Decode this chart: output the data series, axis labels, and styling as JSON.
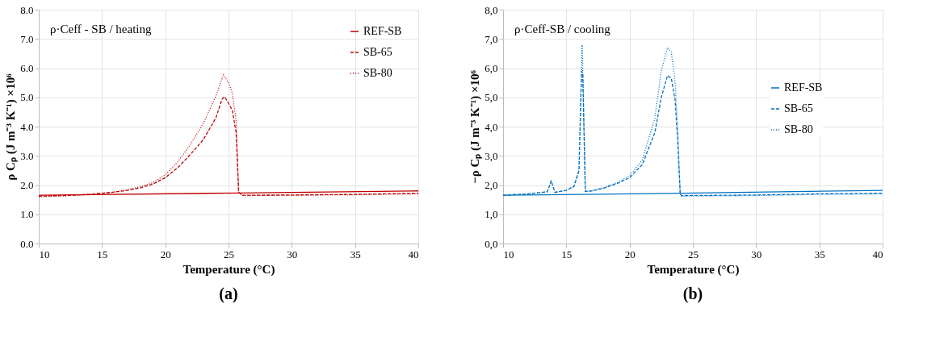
{
  "chart_data": [
    {
      "type": "line",
      "title": "ρ·Ceff - SB / heating",
      "xlabel": "Temperature (°C)",
      "ylabel": "ρ Cₚ (J m⁻³ K⁻¹) ×10⁶",
      "annotations": [
        "(a)"
      ],
      "xlim": [
        10,
        40
      ],
      "xticks": [
        10,
        15,
        20,
        25,
        30,
        35,
        40
      ],
      "ylim": [
        0,
        8
      ],
      "yticks": [
        {
          "value": 0,
          "label": "0.0"
        },
        {
          "value": 1,
          "label": "1.0"
        },
        {
          "value": 2,
          "label": "2.0"
        },
        {
          "value": 3,
          "label": "3.0"
        },
        {
          "value": 4,
          "label": "4.0"
        },
        {
          "value": 5,
          "label": "5.0"
        },
        {
          "value": 6,
          "label": "6.0"
        },
        {
          "value": 7,
          "label": "7.0"
        },
        {
          "value": 8,
          "label": "8.0"
        }
      ],
      "grid": true,
      "legend": "top right",
      "marker": "none",
      "series": [
        {
          "name": "REF-SB",
          "color": "#c00000",
          "line_style": "solid",
          "x": [
            10,
            25.8,
            40
          ],
          "values": [
            1.65,
            1.73,
            1.8
          ]
        },
        {
          "name": "SB-65",
          "color": "#c00000",
          "line_style": "dashed",
          "x": [
            10,
            12,
            14,
            16,
            17,
            18,
            19,
            20,
            21,
            22,
            23,
            24,
            24.5,
            24.7,
            25,
            25.3,
            25.6,
            25.8,
            26.1,
            30,
            35,
            40
          ],
          "values": [
            1.62,
            1.64,
            1.68,
            1.76,
            1.82,
            1.9,
            2.03,
            2.25,
            2.6,
            3.05,
            3.55,
            4.3,
            4.95,
            5.02,
            4.8,
            4.55,
            3.8,
            1.75,
            1.65,
            1.66,
            1.68,
            1.72
          ]
        },
        {
          "name": "SB-80",
          "color": "#c00000",
          "line_style": "dotted",
          "x": [
            10,
            12,
            14,
            16,
            17,
            18,
            19,
            20,
            21,
            22,
            23,
            24,
            24.6,
            25,
            25.3,
            25.6,
            25.8,
            26.1,
            30,
            35,
            40
          ],
          "values": [
            1.6,
            1.63,
            1.68,
            1.76,
            1.84,
            1.94,
            2.08,
            2.35,
            2.8,
            3.4,
            4.1,
            5.05,
            5.78,
            5.5,
            5.15,
            4.2,
            1.75,
            1.64,
            1.65,
            1.67,
            1.7
          ]
        }
      ]
    },
    {
      "type": "line",
      "title": "ρ·Ceff-SB / cooling",
      "xlabel": "Temperature (°C)",
      "ylabel": "−ρ Cₚ (J m⁻³ K⁻¹) ×10⁶",
      "annotations": [
        "(b)"
      ],
      "xlim": [
        10,
        40
      ],
      "xticks": [
        10,
        15,
        20,
        25,
        30,
        35,
        40
      ],
      "ylim": [
        0,
        8
      ],
      "yticks": [
        {
          "value": 0,
          "label": "0,0"
        },
        {
          "value": 1,
          "label": "1,0"
        },
        {
          "value": 2,
          "label": "2,0"
        },
        {
          "value": 3,
          "label": "3,0"
        },
        {
          "value": 4,
          "label": "4,0"
        },
        {
          "value": 5,
          "label": "5,0"
        },
        {
          "value": 6,
          "label": "6,0"
        },
        {
          "value": 7,
          "label": "7,0"
        },
        {
          "value": 8,
          "label": "8,0"
        }
      ],
      "grid": true,
      "legend": "right",
      "marker": "none",
      "series": [
        {
          "name": "REF-SB",
          "color": "#0070c0",
          "line_style": "solid",
          "x": [
            10,
            24,
            40
          ],
          "values": [
            1.65,
            1.72,
            1.82
          ]
        },
        {
          "name": "SB-65",
          "color": "#0070c0",
          "line_style": "dashed",
          "x": [
            10,
            12,
            13.5,
            13.8,
            14.1,
            15,
            15.6,
            16,
            16.2,
            16.3,
            16.5,
            17,
            18,
            19,
            20,
            21,
            22,
            22.5,
            23,
            23.3,
            23.6,
            23.8,
            24,
            24.1,
            30,
            35,
            40
          ],
          "values": [
            1.65,
            1.7,
            1.77,
            2.15,
            1.75,
            1.82,
            1.95,
            2.5,
            5.9,
            5.8,
            1.78,
            1.8,
            1.9,
            2.05,
            2.25,
            2.7,
            3.8,
            5.0,
            5.75,
            5.65,
            4.9,
            3.5,
            1.7,
            1.64,
            1.66,
            1.7,
            1.72
          ]
        },
        {
          "name": "SB-80",
          "color": "#0070c0",
          "line_style": "dotted",
          "x": [
            10,
            12,
            13.5,
            13.8,
            14.1,
            15,
            15.6,
            16,
            16.25,
            16.5,
            17,
            18,
            19,
            20,
            21,
            22,
            22.5,
            23,
            23.3,
            23.6,
            23.8,
            24,
            24.1,
            30,
            35,
            40
          ],
          "values": [
            1.65,
            1.7,
            1.77,
            2.15,
            1.75,
            1.82,
            1.95,
            2.5,
            6.8,
            1.78,
            1.8,
            1.92,
            2.08,
            2.32,
            2.85,
            4.3,
            5.9,
            6.7,
            6.55,
            5.5,
            4.0,
            1.7,
            1.62,
            1.64,
            1.68,
            1.7
          ]
        }
      ]
    }
  ]
}
